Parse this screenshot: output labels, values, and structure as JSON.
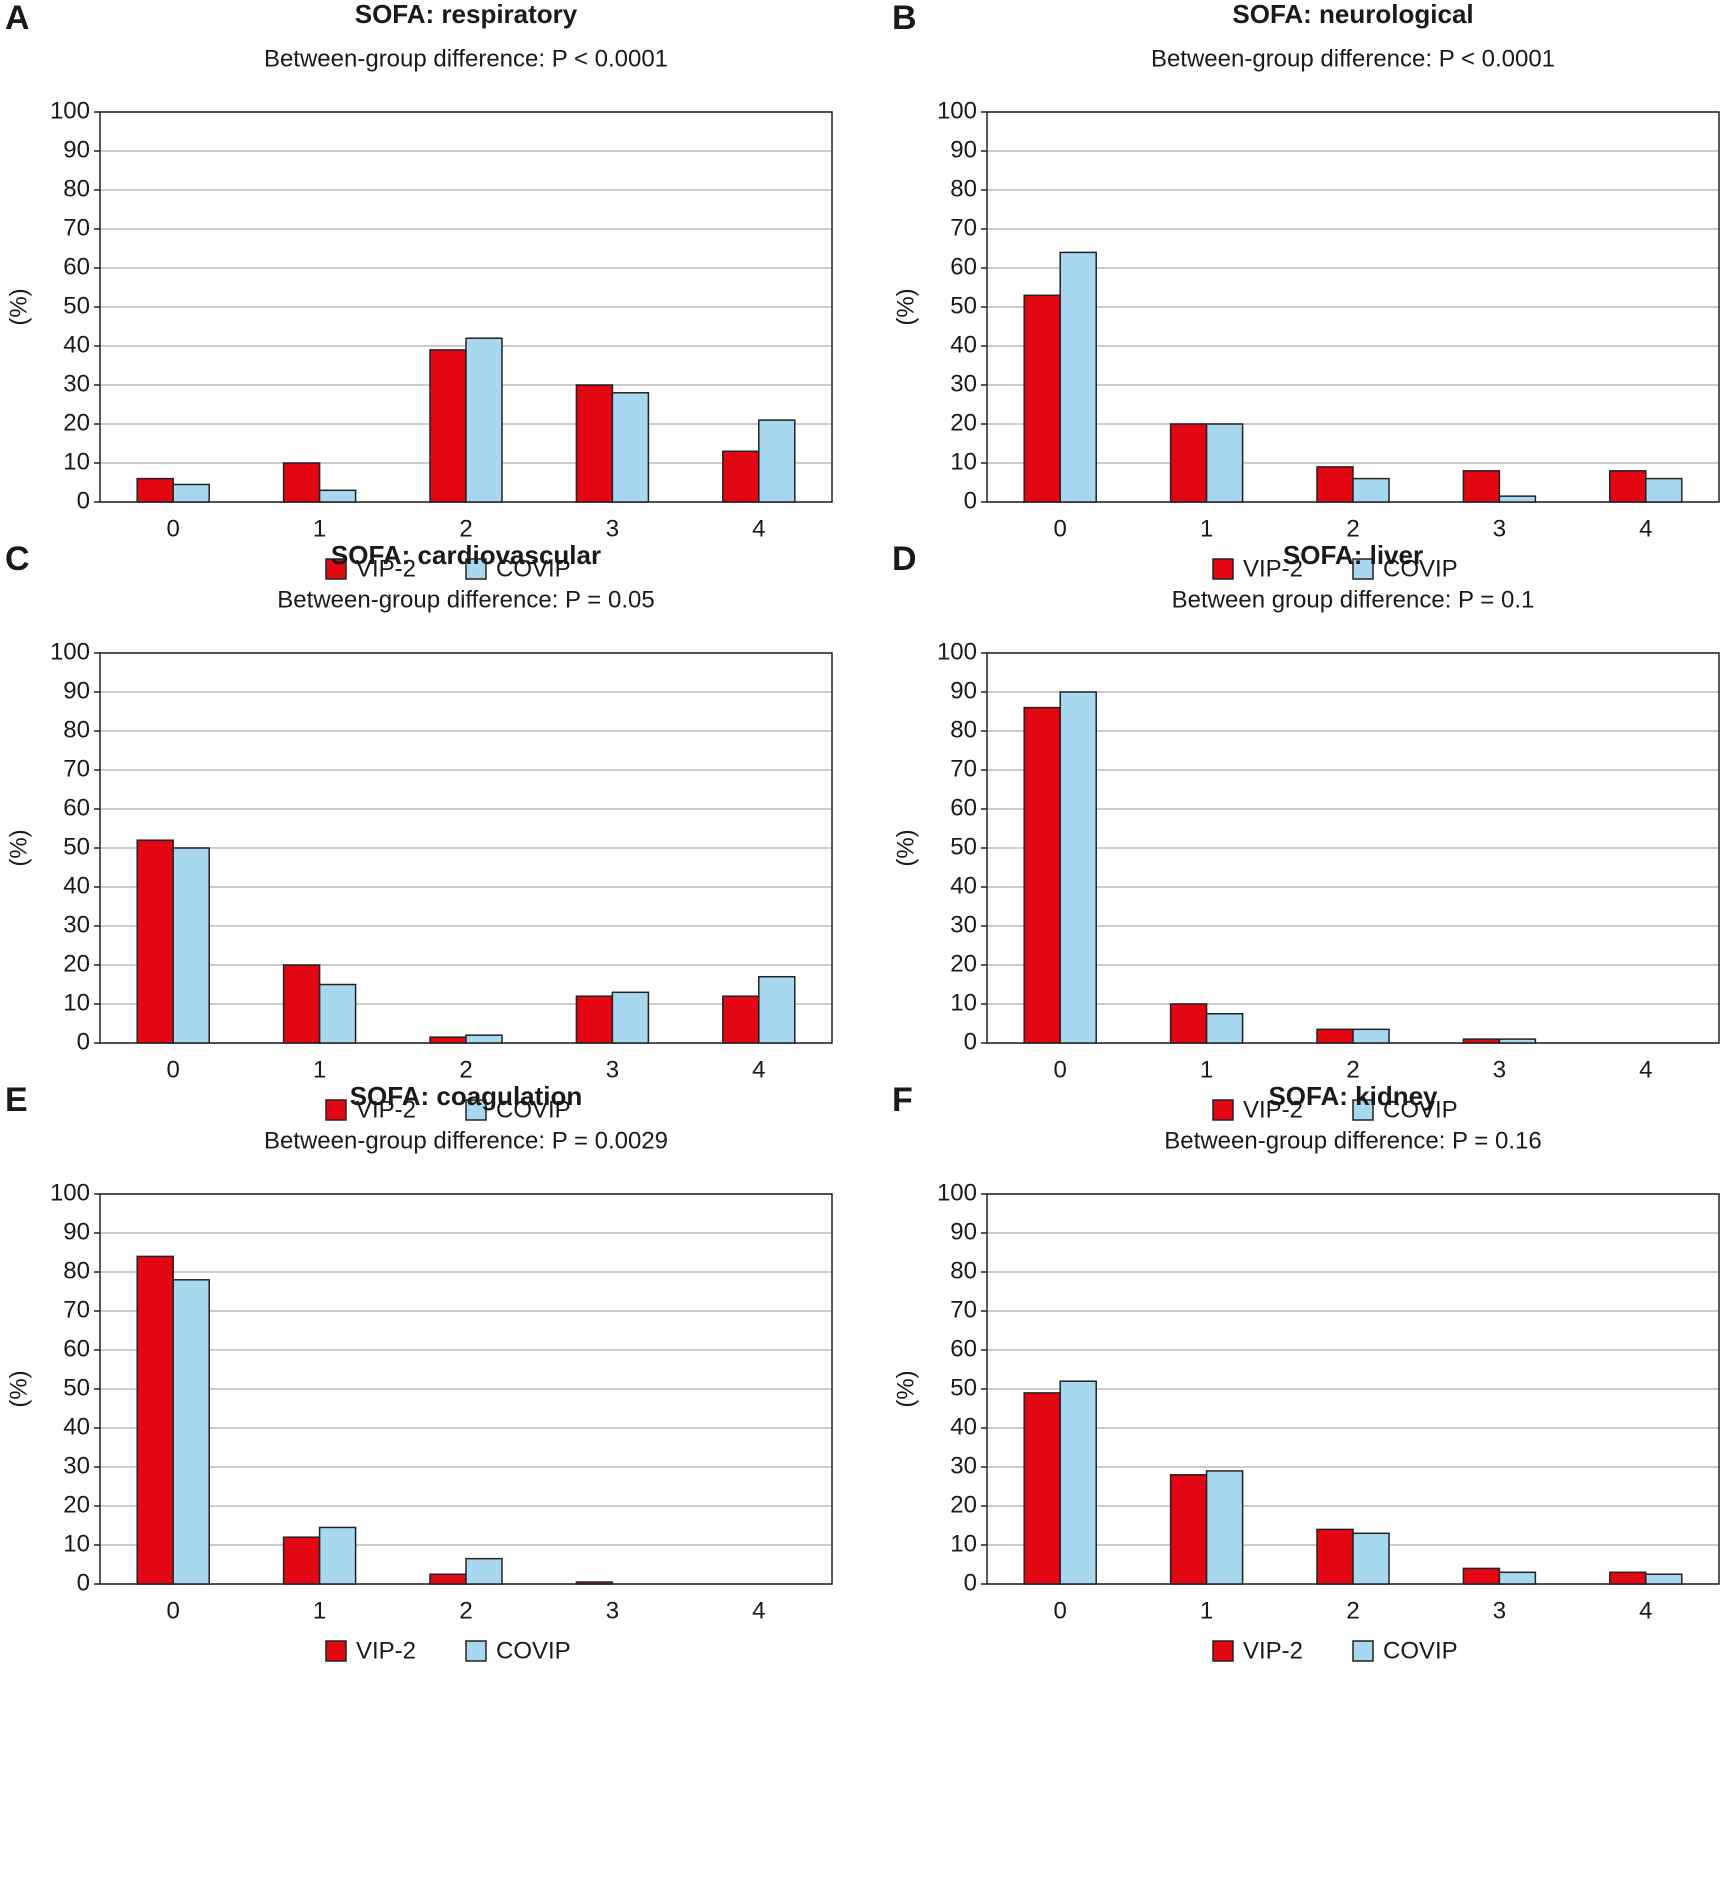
{
  "chart_data": [
    {
      "type": "bar",
      "panel": "A",
      "title": "SOFA: respiratory",
      "subtitle": "Between-group difference: P < 0.0001",
      "y_label": "(%)",
      "categories": [
        "0",
        "1",
        "2",
        "3",
        "4"
      ],
      "series": [
        {
          "name": "VIP-2",
          "color": "#e30613",
          "values": [
            6,
            10,
            39,
            30,
            13
          ]
        },
        {
          "name": "COVIP",
          "color": "#a8d8f0",
          "values": [
            4.5,
            3,
            42,
            28,
            21
          ]
        }
      ],
      "ylim": [
        0,
        100
      ],
      "yticks": [
        0,
        10,
        20,
        30,
        40,
        50,
        60,
        70,
        80,
        90,
        100
      ],
      "grid": true
    },
    {
      "type": "bar",
      "panel": "B",
      "title": "SOFA: neurological",
      "subtitle": "Between-group difference: P < 0.0001",
      "y_label": "(%)",
      "categories": [
        "0",
        "1",
        "2",
        "3",
        "4"
      ],
      "series": [
        {
          "name": "VIP-2",
          "color": "#e30613",
          "values": [
            53,
            20,
            9,
            8,
            8
          ]
        },
        {
          "name": "COVIP",
          "color": "#a8d8f0",
          "values": [
            64,
            20,
            6,
            1.5,
            6
          ]
        }
      ],
      "ylim": [
        0,
        100
      ],
      "yticks": [
        0,
        10,
        20,
        30,
        40,
        50,
        60,
        70,
        80,
        90,
        100
      ],
      "grid": true
    },
    {
      "type": "bar",
      "panel": "C",
      "title": "SOFA: cardiovascular",
      "subtitle": "Between-group difference:  P = 0.05",
      "y_label": "(%)",
      "categories": [
        "0",
        "1",
        "2",
        "3",
        "4"
      ],
      "series": [
        {
          "name": "VIP-2",
          "color": "#e30613",
          "values": [
            52,
            20,
            1.5,
            12,
            12
          ]
        },
        {
          "name": "COVIP",
          "color": "#a8d8f0",
          "values": [
            50,
            15,
            2,
            13,
            17
          ]
        }
      ],
      "ylim": [
        0,
        100
      ],
      "yticks": [
        0,
        10,
        20,
        30,
        40,
        50,
        60,
        70,
        80,
        90,
        100
      ],
      "grid": true
    },
    {
      "type": "bar",
      "panel": "D",
      "title": "SOFA: liver",
      "subtitle": "Between group difference: P = 0.1",
      "y_label": "(%)",
      "categories": [
        "0",
        "1",
        "2",
        "3",
        "4"
      ],
      "series": [
        {
          "name": "VIP-2",
          "color": "#e30613",
          "values": [
            86,
            10,
            3.5,
            1,
            0
          ]
        },
        {
          "name": "COVIP",
          "color": "#a8d8f0",
          "values": [
            90,
            7.5,
            3.5,
            1,
            0
          ]
        }
      ],
      "ylim": [
        0,
        100
      ],
      "yticks": [
        0,
        10,
        20,
        30,
        40,
        50,
        60,
        70,
        80,
        90,
        100
      ],
      "grid": true
    },
    {
      "type": "bar",
      "panel": "E",
      "title": "SOFA: coagulation",
      "subtitle": "Between-group difference: P = 0.0029",
      "y_label": "(%)",
      "categories": [
        "0",
        "1",
        "2",
        "3",
        "4"
      ],
      "series": [
        {
          "name": "VIP-2",
          "color": "#e30613",
          "values": [
            84,
            12,
            2.5,
            0.5,
            0
          ]
        },
        {
          "name": "COVIP",
          "color": "#a8d8f0",
          "values": [
            78,
            14.5,
            6.5,
            0,
            0
          ]
        }
      ],
      "ylim": [
        0,
        100
      ],
      "yticks": [
        0,
        10,
        20,
        30,
        40,
        50,
        60,
        70,
        80,
        90,
        100
      ],
      "grid": true
    },
    {
      "type": "bar",
      "panel": "F",
      "title": "SOFA: kidney",
      "subtitle": "Between-group difference: P = 0.16",
      "y_label": "(%)",
      "categories": [
        "0",
        "1",
        "2",
        "3",
        "4"
      ],
      "series": [
        {
          "name": "VIP-2",
          "color": "#e30613",
          "values": [
            49,
            28,
            14,
            4,
            3
          ]
        },
        {
          "name": "COVIP",
          "color": "#a8d8f0",
          "values": [
            52,
            29,
            13,
            3,
            2.5
          ]
        }
      ],
      "ylim": [
        0,
        100
      ],
      "yticks": [
        0,
        10,
        20,
        30,
        40,
        50,
        60,
        70,
        80,
        90,
        100
      ],
      "grid": true
    }
  ]
}
